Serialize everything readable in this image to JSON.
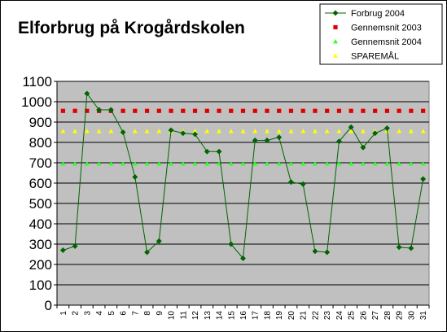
{
  "chart_data": {
    "type": "line",
    "title": "Elforbrug på Krogårdskolen",
    "xlabel": "",
    "ylabel": "",
    "categories": [
      "1",
      "2",
      "3",
      "4",
      "5",
      "6",
      "7",
      "8",
      "9",
      "10",
      "11",
      "12",
      "13",
      "14",
      "15",
      "16",
      "17",
      "18",
      "19",
      "20",
      "21",
      "22",
      "23",
      "24",
      "25",
      "26",
      "27",
      "28",
      "29",
      "30",
      "31"
    ],
    "yticks": [
      "0",
      "100",
      "200",
      "300",
      "400",
      "500",
      "600",
      "700",
      "800",
      "900",
      "1000",
      "1100"
    ],
    "ylim": [
      0,
      1100
    ],
    "grid": true,
    "legend_position": "top-right",
    "series": [
      {
        "name": "Forbrug 2004",
        "color": "#006400",
        "marker": "diamond",
        "line": true,
        "values": [
          270,
          290,
          1040,
          960,
          960,
          850,
          630,
          260,
          315,
          860,
          845,
          840,
          755,
          755,
          300,
          230,
          810,
          810,
          825,
          605,
          595,
          265,
          260,
          805,
          875,
          775,
          845,
          870,
          285,
          280,
          620
        ]
      },
      {
        "name": "Gennemsnit 2003",
        "color": "#e00000",
        "marker": "square",
        "line": false,
        "values": [
          955,
          955,
          955,
          955,
          955,
          955,
          955,
          955,
          955,
          955,
          955,
          955,
          955,
          955,
          955,
          955,
          955,
          955,
          955,
          955,
          955,
          955,
          955,
          955,
          955,
          955,
          955,
          955,
          955,
          955,
          955
        ]
      },
      {
        "name": "Gennemsnit 2004",
        "color": "#33ff33",
        "marker": "triangle",
        "line": false,
        "values": [
          695,
          695,
          695,
          695,
          695,
          695,
          695,
          695,
          695,
          695,
          695,
          695,
          695,
          695,
          695,
          695,
          695,
          695,
          695,
          695,
          695,
          695,
          695,
          695,
          695,
          695,
          695,
          695,
          695,
          695,
          695
        ]
      },
      {
        "name": "SPAREMÅL",
        "color": "#ffff00",
        "marker": "triangle",
        "line": false,
        "values": [
          855,
          855,
          855,
          855,
          855,
          855,
          855,
          855,
          855,
          855,
          855,
          855,
          855,
          855,
          855,
          855,
          855,
          855,
          855,
          855,
          855,
          855,
          855,
          855,
          855,
          855,
          855,
          855,
          855,
          855,
          855
        ]
      }
    ]
  }
}
